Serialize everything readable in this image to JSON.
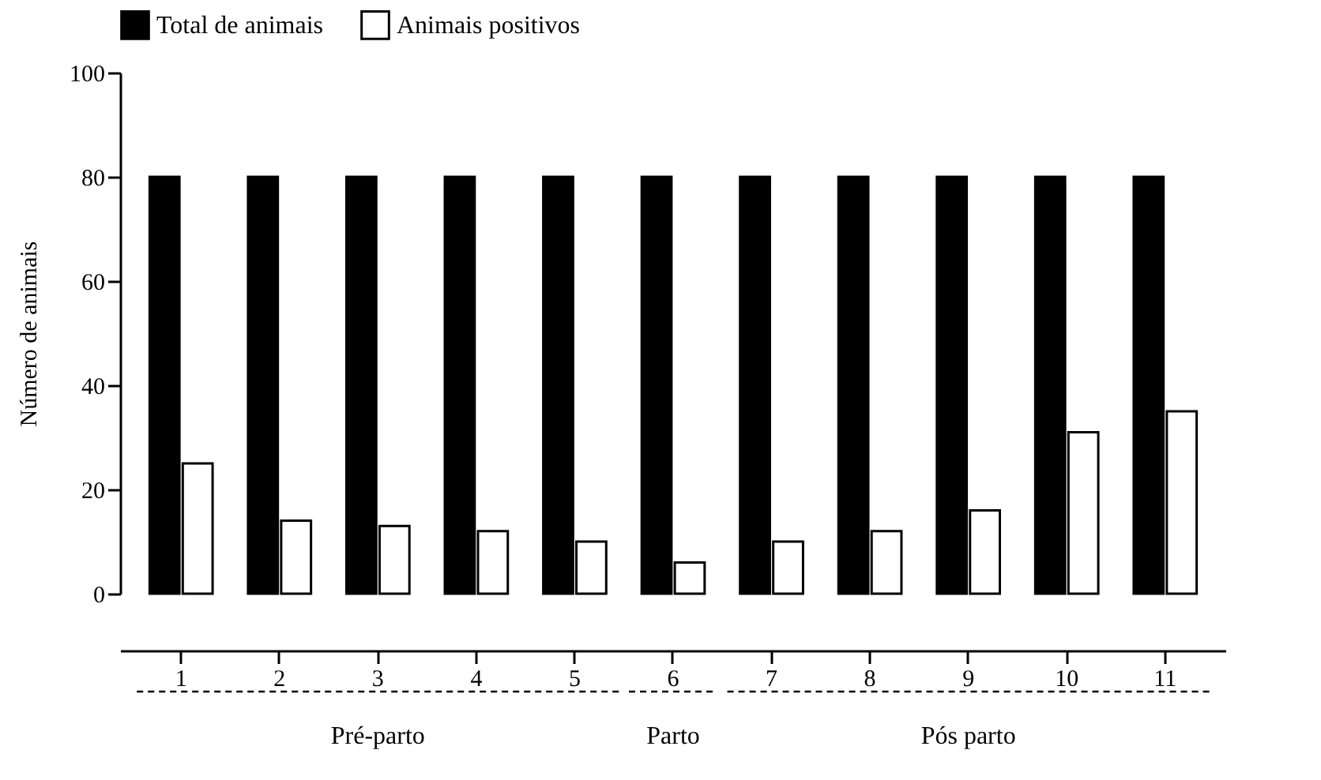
{
  "chart_data": {
    "type": "bar",
    "ylabel": "Número de animais",
    "categories": [
      "1",
      "2",
      "3",
      "4",
      "5",
      "6",
      "7",
      "8",
      "9",
      "10",
      "11"
    ],
    "series": [
      {
        "name": "Total de animais",
        "color": "#000000",
        "values": [
          80,
          80,
          80,
          80,
          80,
          80,
          80,
          80,
          80,
          80,
          80
        ]
      },
      {
        "name": "Animais positivos",
        "color": "#ffffff",
        "values": [
          25,
          14,
          13,
          12,
          10,
          6,
          10,
          12,
          16,
          31,
          35
        ]
      }
    ],
    "ylim": [
      0,
      100
    ],
    "yticks": [
      0,
      20,
      40,
      60,
      80,
      100
    ],
    "grid": false,
    "legend": "top",
    "annotations": [
      "Pré-parto",
      "Parto",
      "Pós parto"
    ]
  }
}
